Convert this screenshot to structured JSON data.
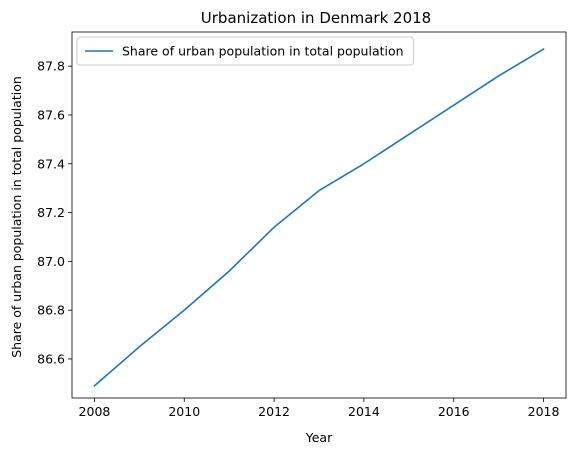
{
  "chart_data": {
    "type": "line",
    "title": "Urbanization in Denmark 2018",
    "xlabel": "Year",
    "ylabel": "Share of urban population in total population",
    "xlim": [
      2007.5,
      2018.5
    ],
    "ylim": [
      86.44,
      87.94
    ],
    "xticks": [
      2008,
      2010,
      2012,
      2014,
      2016,
      2018
    ],
    "yticks": [
      86.6,
      86.8,
      87.0,
      87.2,
      87.4,
      87.6,
      87.8
    ],
    "grid": false,
    "legend_position": "top-left",
    "series": [
      {
        "name": "Share of urban population in total population",
        "color": "#1f77b4",
        "x": [
          2008,
          2009,
          2010,
          2011,
          2012,
          2013,
          2014,
          2015,
          2016,
          2017,
          2018
        ],
        "y": [
          86.49,
          86.65,
          86.8,
          86.96,
          87.14,
          87.29,
          87.4,
          87.52,
          87.64,
          87.76,
          87.87
        ]
      }
    ]
  }
}
